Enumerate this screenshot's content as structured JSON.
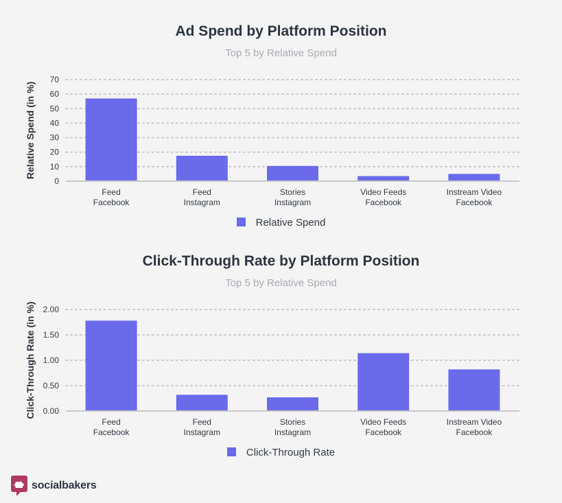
{
  "colors": {
    "bar": "#6a6aea",
    "grid": "#c8c8c8",
    "axis": "#c8c8c8",
    "brand": "#b03a63"
  },
  "chart_data": [
    {
      "type": "bar",
      "title": "Ad Spend by Platform Position",
      "subtitle": "Top 5 by Relative Spend",
      "ylabel": "Relative Spend (in %)",
      "xlabel": "",
      "categories": [
        [
          "Feed",
          "Facebook"
        ],
        [
          "Feed",
          "Instagram"
        ],
        [
          "Stories",
          "Instagram"
        ],
        [
          "Video Feeds",
          "Facebook"
        ],
        [
          "Instream Video",
          "Facebook"
        ]
      ],
      "series": [
        {
          "name": "Relative Spend",
          "values": [
            57,
            17.5,
            10.5,
            3.5,
            5
          ]
        }
      ],
      "ylim": [
        0,
        70
      ],
      "yticks": [
        "0",
        "10",
        "20",
        "30",
        "40",
        "50",
        "60",
        "70"
      ],
      "grid": true,
      "legend": "bottom-center"
    },
    {
      "type": "bar",
      "title": "Click-Through Rate by Platform Position",
      "subtitle": "Top 5 by Relative Spend",
      "ylabel": "Click-Through Rate (in %)",
      "xlabel": "",
      "categories": [
        [
          "Feed",
          "Facebook"
        ],
        [
          "Feed",
          "Instagram"
        ],
        [
          "Stories",
          "Instagram"
        ],
        [
          "Video Feeds",
          "Facebook"
        ],
        [
          "Instream Video",
          "Facebook"
        ]
      ],
      "series": [
        {
          "name": "Click-Through Rate",
          "values": [
            1.78,
            0.32,
            0.27,
            1.14,
            0.82
          ]
        }
      ],
      "ylim": [
        0,
        2
      ],
      "yticks": [
        "0.00",
        "0.50",
        "1.00",
        "1.50",
        "2.00"
      ],
      "grid": true,
      "legend": "bottom-center"
    }
  ],
  "brand": {
    "name": "socialbakers",
    "icon": "socialbakers-logo-icon"
  }
}
